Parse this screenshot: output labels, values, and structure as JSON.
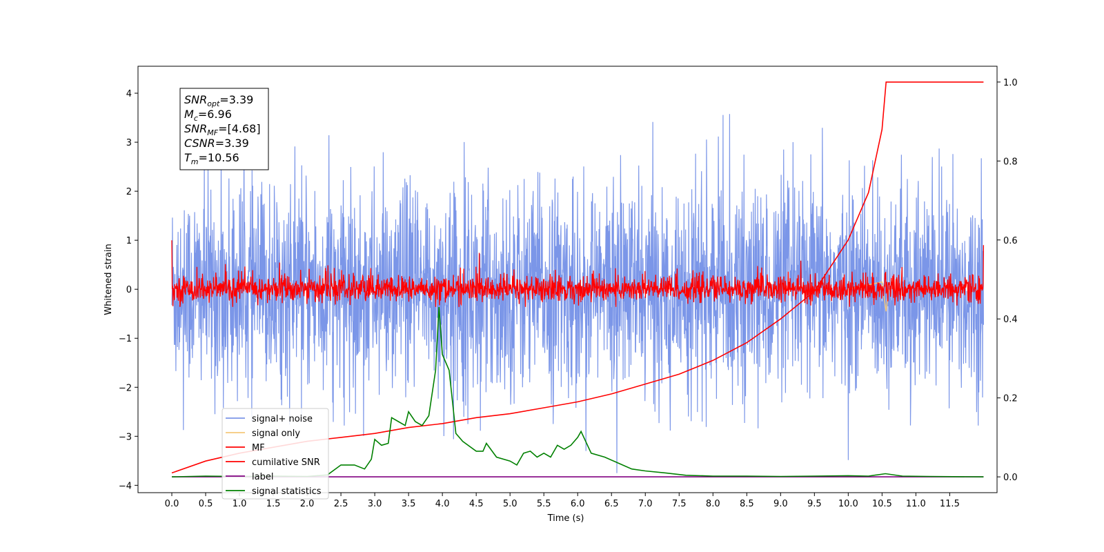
{
  "chart_data": {
    "type": "line",
    "title": "",
    "xlabel": "Time (s)",
    "ylabel": "Whitened strain",
    "y2label": "",
    "xlim": [
      -0.5,
      12.2
    ],
    "ylim": [
      -4.15,
      4.55
    ],
    "y2lim": [
      -0.04,
      1.04
    ],
    "x_ticks": [
      "0.0",
      "0.5",
      "1.0",
      "1.5",
      "2.0",
      "2.5",
      "3.0",
      "3.5",
      "4.0",
      "4.5",
      "5.0",
      "5.5",
      "6.0",
      "6.5",
      "7.0",
      "7.5",
      "8.0",
      "8.5",
      "9.0",
      "9.5",
      "10.0",
      "10.5",
      "11.0",
      "11.5"
    ],
    "y_ticks": [
      "4",
      "3",
      "2",
      "1",
      "0",
      "−1",
      "−2",
      "−3",
      "−4"
    ],
    "y2_ticks": [
      "1.0",
      "0.8",
      "0.6",
      "0.4",
      "0.2",
      "0.0"
    ],
    "annotation": {
      "lines": [
        {
          "main": "SNR",
          "sub": "opt",
          "value": "=3.39"
        },
        {
          "main": "M",
          "sub": "c",
          "value": "=6.96"
        },
        {
          "main": "SNR",
          "sub": "MF",
          "value": "=[4.68]"
        },
        {
          "main": "CSNR",
          "sub": "",
          "value": "=3.39"
        },
        {
          "main": "T",
          "sub": "m",
          "value": "=10.56"
        }
      ]
    },
    "legend": {
      "position": "lower-left",
      "entries": [
        {
          "label": "signal+ noise",
          "color": "#7b96e8"
        },
        {
          "label": "signal only",
          "color": "#f5c87a"
        },
        {
          "label": "MF",
          "color": "#ff0000"
        },
        {
          "label": "cumilative SNR",
          "color": "#ff0000"
        },
        {
          "label": "label",
          "color": "#800080"
        },
        {
          "label": "signal statistics",
          "color": "#008000"
        }
      ]
    },
    "series": [
      {
        "name": "signal+ noise",
        "axis": "left",
        "description": "dense noise, range ~[-3.8, 4.2], x 0-12"
      },
      {
        "name": "signal only",
        "axis": "left",
        "points": [
          [
            10.0,
            0.0
          ],
          [
            10.5,
            0.15
          ],
          [
            10.56,
            -0.45
          ],
          [
            10.6,
            0.0
          ]
        ]
      },
      {
        "name": "MF",
        "axis": "left",
        "description": "dense noise, range ~[-0.35, 1.0], x 0-12"
      },
      {
        "name": "cumilative SNR",
        "axis": "right",
        "points": [
          [
            0.0,
            0.01
          ],
          [
            0.5,
            0.04
          ],
          [
            1.0,
            0.06
          ],
          [
            1.5,
            0.075
          ],
          [
            2.0,
            0.09
          ],
          [
            2.5,
            0.1
          ],
          [
            3.0,
            0.11
          ],
          [
            3.5,
            0.125
          ],
          [
            4.0,
            0.135
          ],
          [
            4.5,
            0.15
          ],
          [
            5.0,
            0.16
          ],
          [
            5.5,
            0.175
          ],
          [
            6.0,
            0.19
          ],
          [
            6.5,
            0.21
          ],
          [
            7.0,
            0.235
          ],
          [
            7.5,
            0.26
          ],
          [
            8.0,
            0.295
          ],
          [
            8.5,
            0.34
          ],
          [
            9.0,
            0.4
          ],
          [
            9.5,
            0.47
          ],
          [
            10.0,
            0.6
          ],
          [
            10.3,
            0.72
          ],
          [
            10.5,
            0.88
          ],
          [
            10.56,
            1.0
          ],
          [
            12.0,
            1.0
          ]
        ]
      },
      {
        "name": "label",
        "axis": "right",
        "points": [
          [
            0.0,
            0.0
          ],
          [
            12.0,
            0.0
          ]
        ]
      },
      {
        "name": "signal statistics",
        "axis": "right",
        "points": [
          [
            0.0,
            0.0
          ],
          [
            0.5,
            0.002
          ],
          [
            1.0,
            0.001
          ],
          [
            1.5,
            0.002
          ],
          [
            2.0,
            0.001
          ],
          [
            2.3,
            0.005
          ],
          [
            2.5,
            0.03
          ],
          [
            2.7,
            0.03
          ],
          [
            2.85,
            0.02
          ],
          [
            2.95,
            0.045
          ],
          [
            3.0,
            0.095
          ],
          [
            3.1,
            0.08
          ],
          [
            3.2,
            0.085
          ],
          [
            3.25,
            0.15
          ],
          [
            3.35,
            0.14
          ],
          [
            3.45,
            0.13
          ],
          [
            3.5,
            0.165
          ],
          [
            3.6,
            0.14
          ],
          [
            3.7,
            0.13
          ],
          [
            3.8,
            0.155
          ],
          [
            3.9,
            0.27
          ],
          [
            3.95,
            0.43
          ],
          [
            4.0,
            0.31
          ],
          [
            4.1,
            0.27
          ],
          [
            4.2,
            0.11
          ],
          [
            4.3,
            0.09
          ],
          [
            4.5,
            0.065
          ],
          [
            4.6,
            0.065
          ],
          [
            4.65,
            0.085
          ],
          [
            4.8,
            0.05
          ],
          [
            5.0,
            0.04
          ],
          [
            5.1,
            0.03
          ],
          [
            5.2,
            0.06
          ],
          [
            5.3,
            0.065
          ],
          [
            5.4,
            0.05
          ],
          [
            5.5,
            0.06
          ],
          [
            5.6,
            0.05
          ],
          [
            5.7,
            0.08
          ],
          [
            5.8,
            0.07
          ],
          [
            5.9,
            0.08
          ],
          [
            6.0,
            0.1
          ],
          [
            6.05,
            0.115
          ],
          [
            6.2,
            0.06
          ],
          [
            6.4,
            0.05
          ],
          [
            6.6,
            0.035
          ],
          [
            6.8,
            0.02
          ],
          [
            7.0,
            0.015
          ],
          [
            7.3,
            0.01
          ],
          [
            7.6,
            0.004
          ],
          [
            8.0,
            0.002
          ],
          [
            8.5,
            0.002
          ],
          [
            9.0,
            0.001
          ],
          [
            9.5,
            0.002
          ],
          [
            10.0,
            0.003
          ],
          [
            10.3,
            0.002
          ],
          [
            10.55,
            0.008
          ],
          [
            10.8,
            0.002
          ],
          [
            11.2,
            0.001
          ],
          [
            12.0,
            0.0
          ]
        ]
      }
    ]
  }
}
